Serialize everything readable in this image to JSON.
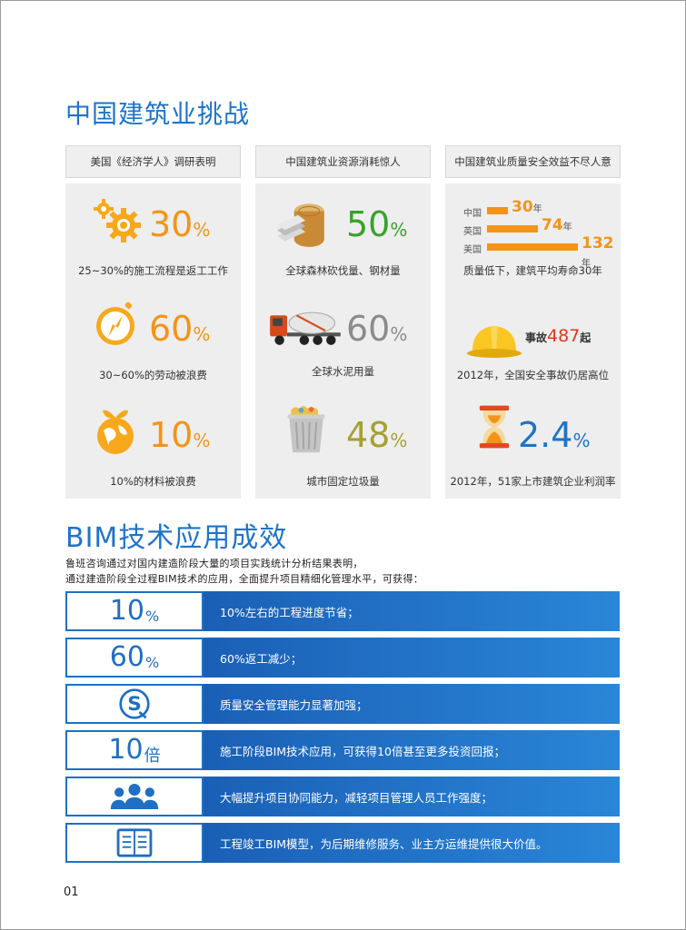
{
  "section1": {
    "title": "中国建筑业挑战",
    "columns": [
      {
        "header": "美国《经济学人》调研表明",
        "cells": [
          {
            "icon": "gears-icon",
            "value": "30",
            "unit": "%",
            "caption": "25~30%的施工流程是返工工作"
          },
          {
            "icon": "compass-icon",
            "value": "60",
            "unit": "%",
            "caption": "30~60%的劳动被浪费"
          },
          {
            "icon": "globe-leaf-icon",
            "value": "10",
            "unit": "%",
            "caption": "10%的材料被浪费"
          }
        ]
      },
      {
        "header": "中国建筑业资源消耗惊人",
        "cells": [
          {
            "icon": "wood-steel-icon",
            "value": "50",
            "unit": "%",
            "caption": "全球森林砍伐量、钢材量"
          },
          {
            "icon": "cement-truck-icon",
            "value": "60",
            "unit": "%",
            "caption": "全球水泥用量"
          },
          {
            "icon": "trash-can-icon",
            "value": "48",
            "unit": "%",
            "caption": "城市固定垃圾量"
          }
        ]
      },
      {
        "header": "中国建筑业质量安全效益不尽人意",
        "lifespan_chart": {
          "bars": [
            {
              "label": "中国",
              "value": "30",
              "unit": "年",
              "num": 30
            },
            {
              "label": "英国",
              "value": "74",
              "unit": "年",
              "num": 74
            },
            {
              "label": "美国",
              "value": "132",
              "unit": "年",
              "num": 132
            }
          ],
          "caption": "质量低下，建筑平均寿命30年"
        },
        "cells": [
          {
            "icon": "hard-hat-icon",
            "prefix": "事故",
            "value": "487",
            "unit": "起",
            "caption": "2012年，全国安全事故仍居高位"
          },
          {
            "icon": "hourglass-icon",
            "value": "2.4",
            "unit": "%",
            "caption": "2012年，51家上市建筑企业利润率"
          }
        ]
      }
    ]
  },
  "section2": {
    "title": "BIM技术应用成效",
    "intro_line1": "鲁班咨询通过对国内建造阶段大量的项目实践统计分析结果表明，",
    "intro_line2": "通过建造阶段全过程BIM技术的应用，全面提升项目精细化管理水平，可获得：",
    "benefits": [
      {
        "num": "10",
        "unit": "%",
        "text": "10%左右的工程进度节省；"
      },
      {
        "num": "60",
        "unit": "%",
        "text": "60%返工减少；"
      },
      {
        "icon": "quality-s-icon",
        "text": "质量安全管理能力显著加强；"
      },
      {
        "num": "10",
        "unit": "倍",
        "text": "施工阶段BIM技术应用，可获得10倍甚至更多投资回报；"
      },
      {
        "icon": "team-icon",
        "text": "大幅提升项目协同能力，减轻项目管理人员工作强度；"
      },
      {
        "icon": "notebook-icon",
        "text": "工程竣工BIM模型，为后期维修服务、业主方运维提供很大价值。"
      }
    ]
  },
  "page_number": "01",
  "colors": {
    "blue": "#1f73c9",
    "orange": "#f39419",
    "green": "#3aa12c",
    "gray": "#8b8b8b",
    "olive": "#a5a033"
  }
}
